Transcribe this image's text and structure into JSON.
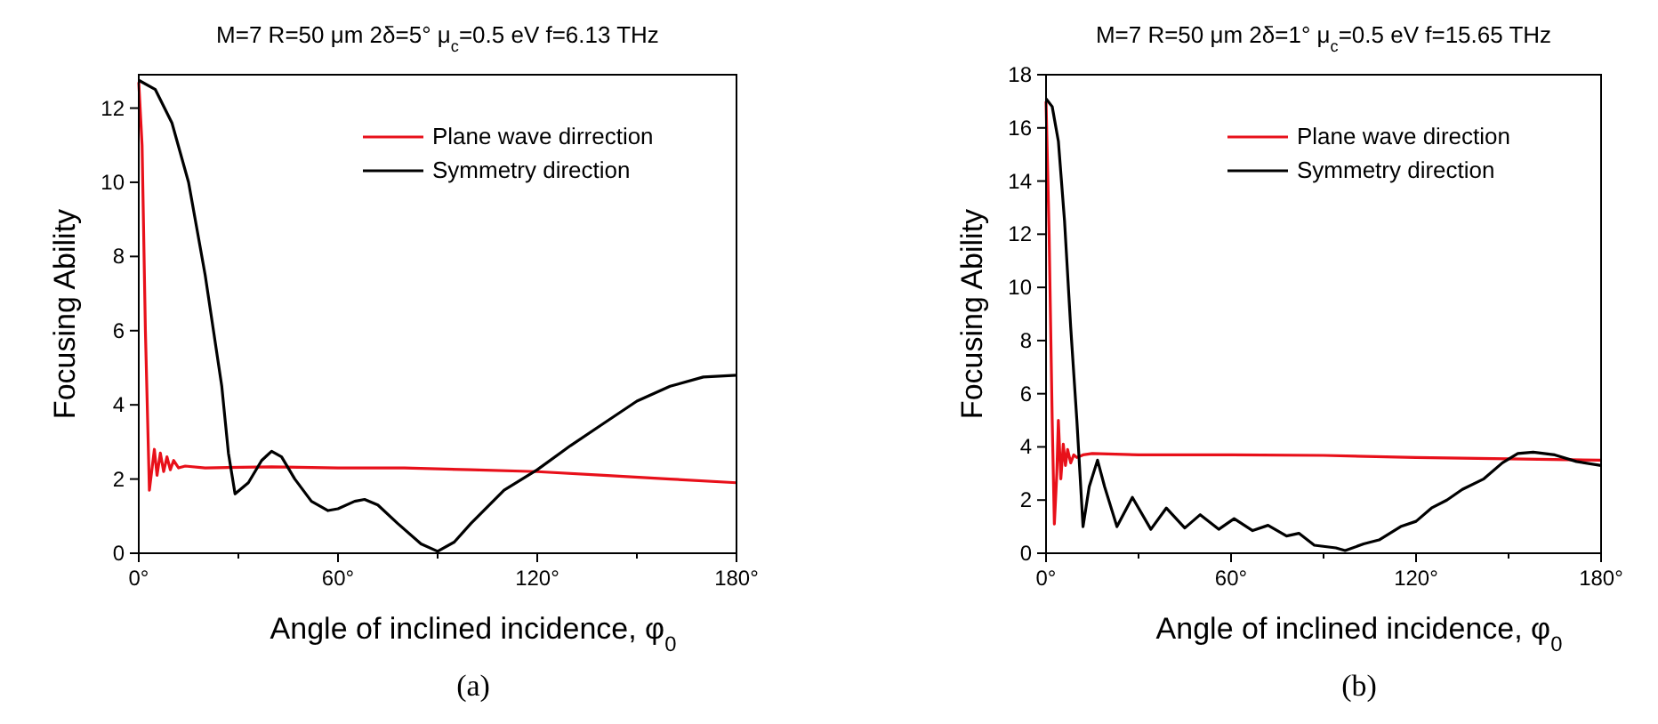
{
  "chart_data": [
    {
      "type": "line",
      "title": "M=7 R=50 μm 2δ=5° μ$_{c}$=0.5 eV f=6.13 THz",
      "xlabel": "Angle of inclined incidence, φ$_{0}$",
      "ylabel": "Focusing Ability",
      "annotations": [
        "(a)"
      ],
      "xlim": [
        0,
        180
      ],
      "ylim": [
        0,
        12.9
      ],
      "xticks": [
        {
          "value": 0,
          "label": "0°"
        },
        {
          "value": 30,
          "label": null
        },
        {
          "value": 60,
          "label": "60°"
        },
        {
          "value": 90,
          "label": null
        },
        {
          "value": 120,
          "label": "120°"
        },
        {
          "value": 150,
          "label": null
        },
        {
          "value": 180,
          "label": "180°"
        }
      ],
      "yticks": [
        0,
        2,
        4,
        6,
        8,
        10,
        12
      ],
      "grid": false,
      "legend": "top right",
      "line_style": "solid",
      "series": [
        {
          "name": "Plane wave dirrection",
          "color": "#e8101a",
          "x": [
            0,
            1,
            2,
            3.2,
            4.7,
            5.5,
            6.5,
            7.5,
            8.5,
            9.5,
            10.5,
            12,
            14,
            20,
            40,
            60,
            80,
            100,
            120,
            140,
            160,
            180
          ],
          "values": [
            12.7,
            11,
            6,
            1.7,
            2.8,
            2.1,
            2.7,
            2.2,
            2.6,
            2.25,
            2.5,
            2.3,
            2.35,
            2.3,
            2.33,
            2.3,
            2.3,
            2.25,
            2.2,
            2.1,
            2.0,
            1.9
          ]
        },
        {
          "name": "Symmetry direction",
          "color": "#000000",
          "x": [
            0,
            5,
            10,
            15,
            20,
            25,
            27,
            29,
            33,
            37,
            40,
            43,
            47,
            52,
            57,
            60,
            65,
            68,
            72,
            78,
            85,
            90,
            95,
            100,
            110,
            120,
            130,
            140,
            150,
            160,
            170,
            180
          ],
          "values": [
            12.75,
            12.5,
            11.6,
            10,
            7.5,
            4.5,
            2.7,
            1.6,
            1.9,
            2.5,
            2.75,
            2.6,
            2.0,
            1.4,
            1.15,
            1.2,
            1.4,
            1.45,
            1.3,
            0.8,
            0.25,
            0.05,
            0.3,
            0.8,
            1.7,
            2.25,
            2.9,
            3.5,
            4.1,
            4.5,
            4.75,
            4.8
          ]
        }
      ]
    },
    {
      "type": "line",
      "title": "M=7 R=50 μm 2δ=1° μ$_{c}$=0.5 eV f=15.65 THz",
      "xlabel": "Angle of inclined incidence, φ$_{0}$",
      "ylabel": "Focusing Ability",
      "annotations": [
        "(b)"
      ],
      "xlim": [
        0,
        180
      ],
      "ylim": [
        0,
        18
      ],
      "xticks": [
        {
          "value": 0,
          "label": "0°"
        },
        {
          "value": 30,
          "label": null
        },
        {
          "value": 60,
          "label": "60°"
        },
        {
          "value": 90,
          "label": null
        },
        {
          "value": 120,
          "label": "120°"
        },
        {
          "value": 150,
          "label": null
        },
        {
          "value": 180,
          "label": "180°"
        }
      ],
      "yticks": [
        0,
        2,
        4,
        6,
        8,
        10,
        12,
        14,
        16,
        18
      ],
      "grid": false,
      "legend": "top right",
      "line_style": "solid",
      "series": [
        {
          "name": "Plane wave direction",
          "color": "#e8101a",
          "x": [
            0,
            1,
            2,
            2.7,
            3.5,
            4,
            4.8,
            5.6,
            6.3,
            7,
            8,
            9,
            10,
            12,
            15,
            30,
            60,
            90,
            120,
            150,
            180
          ],
          "values": [
            17,
            12,
            5,
            1.1,
            3,
            5.0,
            2.8,
            4.1,
            3.3,
            3.9,
            3.4,
            3.7,
            3.6,
            3.7,
            3.75,
            3.7,
            3.7,
            3.68,
            3.6,
            3.55,
            3.5
          ]
        },
        {
          "name": "Symmetry direction",
          "color": "#000000",
          "x": [
            0,
            2,
            4,
            6,
            8,
            10,
            12,
            14,
            16.7,
            19,
            23,
            28,
            34,
            39,
            45,
            50,
            56,
            61,
            67,
            72,
            78,
            82,
            87,
            94,
            97,
            103,
            108,
            115,
            120,
            125,
            130,
            135,
            142,
            148,
            153,
            158,
            165,
            172,
            180
          ],
          "values": [
            17.1,
            16.8,
            15.5,
            12.5,
            8.5,
            5,
            1.0,
            2.5,
            3.5,
            2.5,
            1.0,
            2.1,
            0.9,
            1.7,
            0.95,
            1.45,
            0.9,
            1.3,
            0.85,
            1.05,
            0.65,
            0.75,
            0.3,
            0.2,
            0.1,
            0.35,
            0.5,
            1.0,
            1.2,
            1.7,
            2.0,
            2.4,
            2.8,
            3.4,
            3.75,
            3.8,
            3.7,
            3.45,
            3.3
          ]
        }
      ]
    }
  ]
}
